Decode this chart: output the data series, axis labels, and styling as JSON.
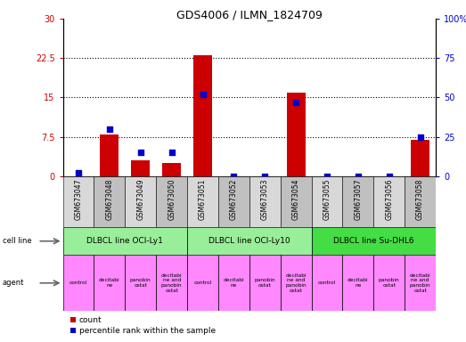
{
  "title": "GDS4006 / ILMN_1824709",
  "samples": [
    "GSM673047",
    "GSM673048",
    "GSM673049",
    "GSM673050",
    "GSM673051",
    "GSM673052",
    "GSM673053",
    "GSM673054",
    "GSM673055",
    "GSM673057",
    "GSM673056",
    "GSM673058"
  ],
  "counts": [
    0,
    8,
    3,
    2.5,
    23,
    0,
    0,
    16,
    0,
    0,
    0,
    7
  ],
  "percentiles": [
    2,
    30,
    15,
    15,
    52,
    0,
    0,
    47,
    0,
    0,
    0,
    25
  ],
  "ylim_left": [
    0,
    30
  ],
  "ylim_right": [
    0,
    100
  ],
  "yticks_left": [
    0,
    7.5,
    15,
    22.5,
    30
  ],
  "ytick_labels_left": [
    "0",
    "7.5",
    "15",
    "22.5",
    "30"
  ],
  "yticks_right": [
    0,
    25,
    50,
    75,
    100
  ],
  "ytick_labels_right": [
    "0",
    "25",
    "50",
    "75",
    "100%"
  ],
  "cell_lines": [
    {
      "label": "DLBCL line OCI-Ly1",
      "start": 0,
      "end": 4,
      "color": "#99ee99"
    },
    {
      "label": "DLBCL line OCI-Ly10",
      "start": 4,
      "end": 8,
      "color": "#99ee99"
    },
    {
      "label": "DLBCL line Su-DHL6",
      "start": 8,
      "end": 12,
      "color": "#44dd44"
    }
  ],
  "agents": [
    "control",
    "decitabi\nne",
    "panobin\nostat",
    "decitabi\nne and\npanobin\nostat",
    "control",
    "decitabi\nne",
    "panobin\nostat",
    "decitabi\nne and\npanobin\nostat",
    "control",
    "decitabi\nne",
    "panobin\nostat",
    "decitabi\nne and\npanobin\nostat"
  ],
  "bar_color": "#cc0000",
  "dot_color": "#0000cc",
  "left_axis_color": "#cc0000",
  "right_axis_color": "#0000cc",
  "cell_line_bg1": "#99ee99",
  "cell_line_bg2": "#44dd44",
  "agent_bg": "#ff88ff",
  "tick_bg_light": "#d8d8d8",
  "tick_bg_dark": "#c0c0c0",
  "legend_square_red": "#cc0000",
  "legend_square_blue": "#0000cc"
}
